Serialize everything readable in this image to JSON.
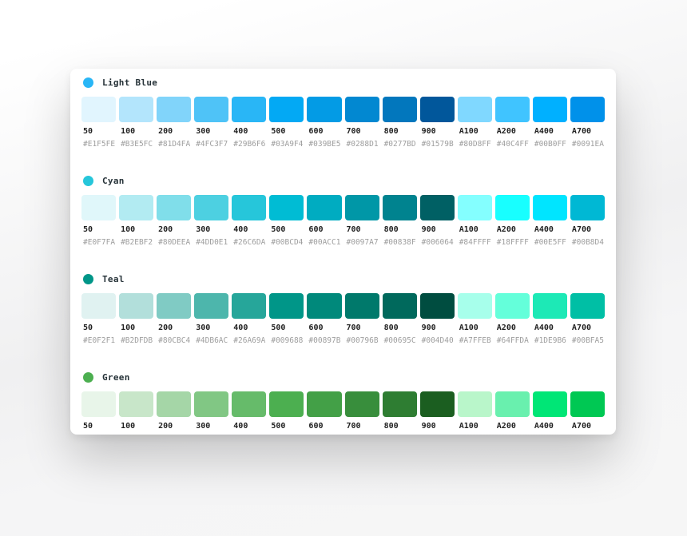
{
  "palette_groups": [
    {
      "name": "Light Blue",
      "dot_color": "#29B6F6",
      "shades": [
        {
          "label": "50",
          "color": "#E1F5FE",
          "hex_label": "#E1F5FE"
        },
        {
          "label": "100",
          "color": "#B3E5FC",
          "hex_label": "#B3E5FC"
        },
        {
          "label": "200",
          "color": "#81D4FA",
          "hex_label": "#81D4FA"
        },
        {
          "label": "300",
          "color": "#4FC3F7",
          "hex_label": "#4FC3F7"
        },
        {
          "label": "400",
          "color": "#29B6F6",
          "hex_label": "#29B6F6"
        },
        {
          "label": "500",
          "color": "#03A9F4",
          "hex_label": "#03A9F4"
        },
        {
          "label": "600",
          "color": "#039BE5",
          "hex_label": "#039BE5"
        },
        {
          "label": "700",
          "color": "#0288D1",
          "hex_label": "#0288D1"
        },
        {
          "label": "800",
          "color": "#0277BD",
          "hex_label": "#0277BD"
        },
        {
          "label": "900",
          "color": "#01579B",
          "hex_label": "#01579B"
        },
        {
          "label": "A100",
          "color": "#80D8FF",
          "hex_label": "#80D8FF"
        },
        {
          "label": "A200",
          "color": "#40C4FF",
          "hex_label": "#40C4FF"
        },
        {
          "label": "A400",
          "color": "#00B0FF",
          "hex_label": "#00B0FF"
        },
        {
          "label": "A700",
          "color": "#0091EA",
          "hex_label": "#0091EA"
        }
      ]
    },
    {
      "name": "Cyan",
      "dot_color": "#26C6DA",
      "shades": [
        {
          "label": "50",
          "color": "#E0F7FA",
          "hex_label": "#E0F7FA"
        },
        {
          "label": "100",
          "color": "#B2EBF2",
          "hex_label": "#B2EBF2"
        },
        {
          "label": "200",
          "color": "#80DEEA",
          "hex_label": "#80DEEA"
        },
        {
          "label": "300",
          "color": "#4DD0E1",
          "hex_label": "#4DD0E1"
        },
        {
          "label": "400",
          "color": "#26C6DA",
          "hex_label": "#26C6DA"
        },
        {
          "label": "500",
          "color": "#00BCD4",
          "hex_label": "#00BCD4"
        },
        {
          "label": "600",
          "color": "#00ACC1",
          "hex_label": "#00ACC1"
        },
        {
          "label": "700",
          "color": "#0097A7",
          "hex_label": "#0097A7"
        },
        {
          "label": "800",
          "color": "#00838F",
          "hex_label": "#00838F"
        },
        {
          "label": "900",
          "color": "#006064",
          "hex_label": "#006064"
        },
        {
          "label": "A100",
          "color": "#84FFFF",
          "hex_label": "#84FFFF"
        },
        {
          "label": "A200",
          "color": "#18FFFF",
          "hex_label": "#18FFFF"
        },
        {
          "label": "A400",
          "color": "#00E5FF",
          "hex_label": "#00E5FF"
        },
        {
          "label": "A700",
          "color": "#00B8D4",
          "hex_label": "#00B8D4"
        }
      ]
    },
    {
      "name": "Teal",
      "dot_color": "#009688",
      "shades": [
        {
          "label": "50",
          "color": "#E0F2F1",
          "hex_label": "#E0F2F1"
        },
        {
          "label": "100",
          "color": "#B2DFDB",
          "hex_label": "#B2DFDB"
        },
        {
          "label": "200",
          "color": "#80CBC4",
          "hex_label": "#80CBC4"
        },
        {
          "label": "300",
          "color": "#4DB6AC",
          "hex_label": "#4DB6AC"
        },
        {
          "label": "400",
          "color": "#26A69A",
          "hex_label": "#26A69A"
        },
        {
          "label": "500",
          "color": "#009688",
          "hex_label": "#009688"
        },
        {
          "label": "600",
          "color": "#00897B",
          "hex_label": "#00897B"
        },
        {
          "label": "700",
          "color": "#00796B",
          "hex_label": "#00796B"
        },
        {
          "label": "800",
          "color": "#00695C",
          "hex_label": "#00695C"
        },
        {
          "label": "900",
          "color": "#004D40",
          "hex_label": "#004D40"
        },
        {
          "label": "A100",
          "color": "#A7FFEB",
          "hex_label": "#A7FFEB"
        },
        {
          "label": "A200",
          "color": "#64FFDA",
          "hex_label": "#64FFDA"
        },
        {
          "label": "A400",
          "color": "#1DE9B6",
          "hex_label": "#1DE9B6"
        },
        {
          "label": "A700",
          "color": "#00BFA5",
          "hex_label": "#00BFA5"
        }
      ]
    },
    {
      "name": "Green",
      "dot_color": "#4CAF50",
      "shades": [
        {
          "label": "50",
          "color": "#E8F5E9",
          "hex_label": ""
        },
        {
          "label": "100",
          "color": "#C8E6C9",
          "hex_label": ""
        },
        {
          "label": "200",
          "color": "#A5D6A7",
          "hex_label": ""
        },
        {
          "label": "300",
          "color": "#81C784",
          "hex_label": ""
        },
        {
          "label": "400",
          "color": "#66BB6A",
          "hex_label": ""
        },
        {
          "label": "500",
          "color": "#4CAF50",
          "hex_label": ""
        },
        {
          "label": "600",
          "color": "#43A047",
          "hex_label": ""
        },
        {
          "label": "700",
          "color": "#388E3C",
          "hex_label": ""
        },
        {
          "label": "800",
          "color": "#2E7D32",
          "hex_label": ""
        },
        {
          "label": "900",
          "color": "#1B5E20",
          "hex_label": ""
        },
        {
          "label": "A100",
          "color": "#B9F6CA",
          "hex_label": ""
        },
        {
          "label": "A200",
          "color": "#69F0AE",
          "hex_label": ""
        },
        {
          "label": "A400",
          "color": "#00E676",
          "hex_label": ""
        },
        {
          "label": "A700",
          "color": "#00C853",
          "hex_label": ""
        }
      ]
    }
  ]
}
